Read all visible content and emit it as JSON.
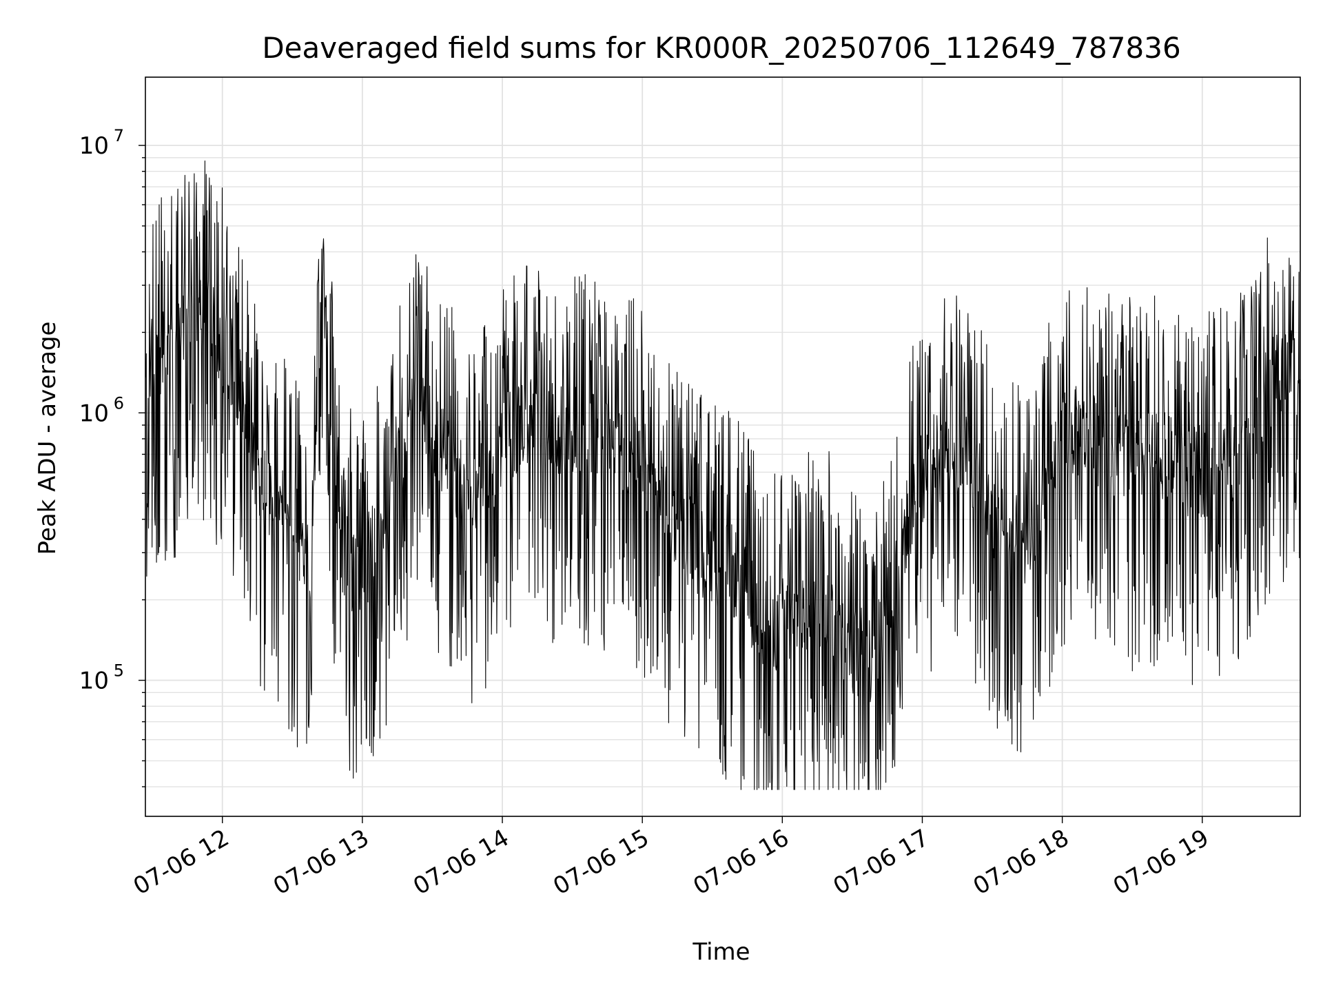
{
  "chart_data": {
    "type": "line",
    "title": "Deaveraged field sums for KR000R_20250706_112649_787836",
    "xlabel": "Time",
    "ylabel": "Peak ADU - average",
    "x_range": [
      "07-06 11:27",
      "07-06 19:42"
    ],
    "x_ticks": [
      "07-06 12",
      "07-06 13",
      "07-06 14",
      "07-06 15",
      "07-06 16",
      "07-06 17",
      "07-06 18",
      "07-06 19"
    ],
    "x_tick_times": [
      "07-06 12:00",
      "07-06 13:00",
      "07-06 14:00",
      "07-06 15:00",
      "07-06 16:00",
      "07-06 17:00",
      "07-06 18:00",
      "07-06 19:00"
    ],
    "y_scale": "log",
    "y_range": [
      31000,
      18000000
    ],
    "y_ticks": [
      {
        "value": 100000,
        "base": "10",
        "exp": "5"
      },
      {
        "value": 1000000,
        "base": "10",
        "exp": "6"
      },
      {
        "value": 10000000,
        "base": "10",
        "exp": "7"
      }
    ],
    "grid": true,
    "line_color": "#000000",
    "series": [
      {
        "x": [
          "07-06 11:27",
          "07-06 11:33",
          "07-06 11:40",
          "07-06 11:45",
          "07-06 11:50",
          "07-06 11:54",
          "07-06 11:58",
          "07-06 12:03",
          "07-06 12:08",
          "07-06 12:13",
          "07-06 12:20",
          "07-06 12:27",
          "07-06 12:32",
          "07-06 12:38",
          "07-06 12:43",
          "07-06 12:49",
          "07-06 12:55",
          "07-06 13:00",
          "07-06 13:05",
          "07-06 13:11",
          "07-06 13:17",
          "07-06 13:22",
          "07-06 13:28",
          "07-06 13:35",
          "07-06 13:42",
          "07-06 13:50",
          "07-06 13:56",
          "07-06 14:02",
          "07-06 14:10",
          "07-06 14:17",
          "07-06 14:25",
          "07-06 14:32",
          "07-06 14:40",
          "07-06 14:48",
          "07-06 14:55",
          "07-06 15:03",
          "07-06 15:10",
          "07-06 15:18",
          "07-06 15:25",
          "07-06 15:32",
          "07-06 15:40",
          "07-06 15:46",
          "07-06 15:52",
          "07-06 15:58",
          "07-06 16:03",
          "07-06 16:10",
          "07-06 16:17",
          "07-06 16:24",
          "07-06 16:31",
          "07-06 16:38",
          "07-06 16:45",
          "07-06 16:50",
          "07-06 16:57",
          "07-06 17:03",
          "07-06 17:10",
          "07-06 17:17",
          "07-06 17:24",
          "07-06 17:31",
          "07-06 17:38",
          "07-06 17:45",
          "07-06 17:52",
          "07-06 17:58",
          "07-06 18:05",
          "07-06 18:12",
          "07-06 18:19",
          "07-06 18:26",
          "07-06 18:33",
          "07-06 18:40",
          "07-06 18:47",
          "07-06 18:54",
          "07-06 19:00",
          "07-06 19:07",
          "07-06 19:14",
          "07-06 19:20",
          "07-06 19:27",
          "07-06 19:33",
          "07-06 19:38",
          "07-06 19:42"
        ],
        "y": [
          1500000,
          1600000,
          1800000,
          2200000,
          2500000,
          2100000,
          1900000,
          1600000,
          1200000,
          700000,
          450000,
          400000,
          350000,
          300000,
          3800000,
          350000,
          270000,
          250000,
          320000,
          380000,
          700000,
          1000000,
          900000,
          700000,
          550000,
          500000,
          600000,
          800000,
          950000,
          900000,
          850000,
          850000,
          800000,
          750000,
          700000,
          600000,
          450000,
          350000,
          300000,
          280000,
          250000,
          200000,
          170000,
          160000,
          170000,
          180000,
          200000,
          160000,
          130000,
          120000,
          180000,
          300000,
          500000,
          650000,
          700000,
          700000,
          600000,
          400000,
          350000,
          300000,
          450000,
          800000,
          850000,
          800000,
          750000,
          700000,
          650000,
          700000,
          650000,
          600000,
          600000,
          650000,
          700000,
          750000,
          1200000,
          1400000,
          1500000,
          1300000
        ]
      }
    ]
  }
}
